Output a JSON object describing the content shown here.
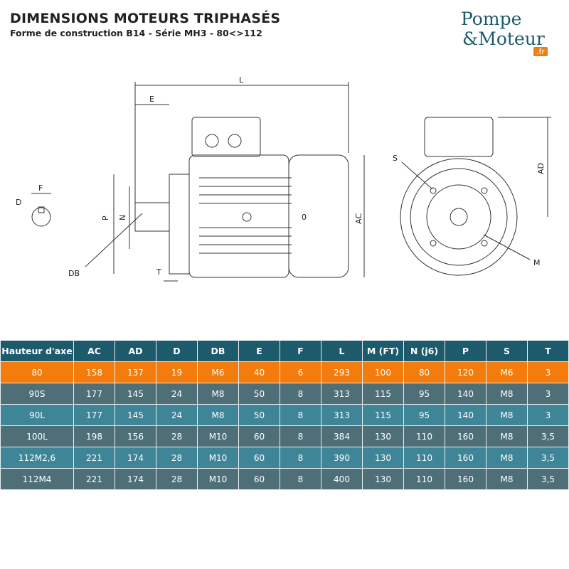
{
  "header": {
    "title": "DIMENSIONS MOTEURS TRIPHASÉS",
    "subtitle": "Forme de construction B14 - Série MH3 - 80<>112"
  },
  "logo": {
    "line1": "Pompe",
    "line2": "&Moteur",
    "tld": ".fr"
  },
  "drawing_labels": {
    "L": "L",
    "E": "E",
    "F": "F",
    "D": "D",
    "DB": "DB",
    "P": "P",
    "N": "N",
    "T": "T",
    "M_side": "0",
    "AC": "AC",
    "AD": "AD",
    "S": "S",
    "M": "M"
  },
  "colors": {
    "header": "#1d5a6c",
    "highlight": "#f47c0c",
    "row_dark": "#4e6f78",
    "row_light": "#3f8598"
  },
  "table": {
    "headers": [
      "Hauteur d'axe",
      "AC",
      "AD",
      "D",
      "DB",
      "E",
      "F",
      "L",
      "M (FT)",
      "N (j6)",
      "P",
      "S",
      "T"
    ],
    "rows": [
      [
        "80",
        "158",
        "137",
        "19",
        "M6",
        "40",
        "6",
        "293",
        "100",
        "80",
        "120",
        "M6",
        "3"
      ],
      [
        "90S",
        "177",
        "145",
        "24",
        "M8",
        "50",
        "8",
        "313",
        "115",
        "95",
        "140",
        "M8",
        "3"
      ],
      [
        "90L",
        "177",
        "145",
        "24",
        "M8",
        "50",
        "8",
        "313",
        "115",
        "95",
        "140",
        "M8",
        "3"
      ],
      [
        "100L",
        "198",
        "156",
        "28",
        "M10",
        "60",
        "8",
        "384",
        "130",
        "110",
        "160",
        "M8",
        "3,5"
      ],
      [
        "112M2,6",
        "221",
        "174",
        "28",
        "M10",
        "60",
        "8",
        "390",
        "130",
        "110",
        "160",
        "M8",
        "3,5"
      ],
      [
        "112M4",
        "221",
        "174",
        "28",
        "M10",
        "60",
        "8",
        "400",
        "130",
        "110",
        "160",
        "M8",
        "3,5"
      ]
    ]
  }
}
